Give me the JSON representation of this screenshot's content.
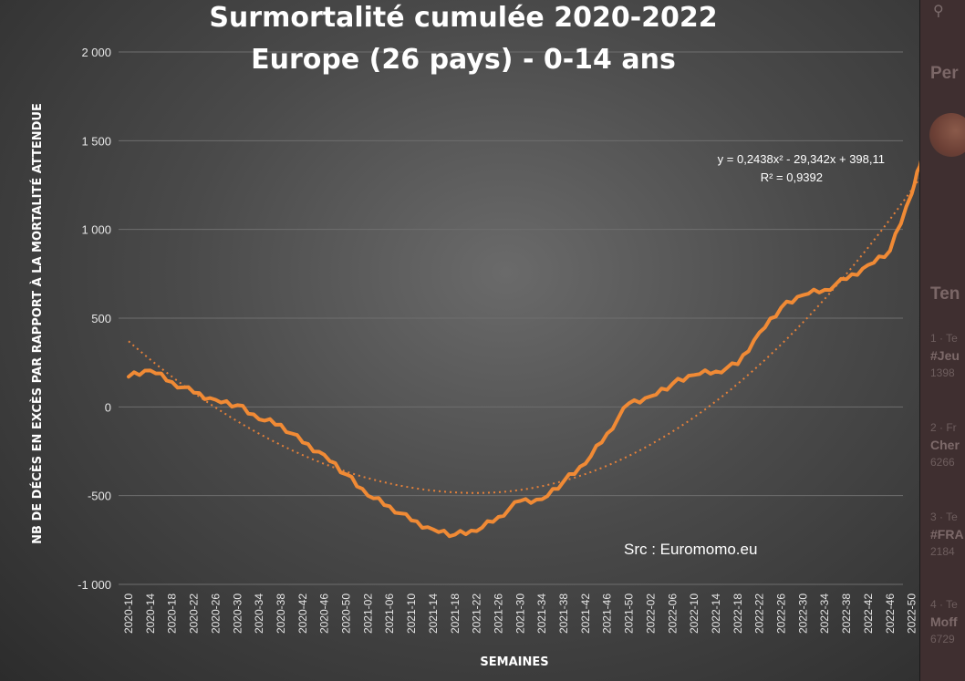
{
  "chart_data": {
    "type": "line",
    "title": "Surmortalité cumulée 2020-2022",
    "subtitle": "Europe (26 pays) - 0-14 ans",
    "xlabel": "SEMAINES",
    "ylabel": "NB DE DÉCÈS EN EXCÈS PAR RAPPORT À LA MORTALITÉ ATTENDUE",
    "ylim": [
      -1000,
      2000
    ],
    "yticks": [
      2000,
      1500,
      1000,
      500,
      0,
      -500,
      -1000
    ],
    "ytick_labels": [
      "2 000",
      "1 500",
      "1 000",
      "500",
      "0",
      "-500",
      "-1 000"
    ],
    "xticks": [
      "2020-10",
      "2020-14",
      "2020-18",
      "2020-22",
      "2020-26",
      "2020-30",
      "2020-34",
      "2020-38",
      "2020-42",
      "2020-46",
      "2020-50",
      "2021-02",
      "2021-06",
      "2021-10",
      "2021-14",
      "2021-18",
      "2021-22",
      "2021-26",
      "2021-30",
      "2021-34",
      "2021-38",
      "2021-42",
      "2021-46",
      "2021-50",
      "2022-02",
      "2022-06",
      "2022-10",
      "2022-14",
      "2022-18",
      "2022-22",
      "2022-26",
      "2022-30",
      "2022-34",
      "2022-38",
      "2022-42",
      "2022-46",
      "2022-50"
    ],
    "grid": true,
    "series": [
      {
        "color": "#f08a35",
        "x": [
          "2020-10",
          "2020-14",
          "2020-18",
          "2020-22",
          "2020-26",
          "2020-30",
          "2020-34",
          "2020-38",
          "2020-42",
          "2020-46",
          "2020-50",
          "2021-02",
          "2021-06",
          "2021-10",
          "2021-14",
          "2021-18",
          "2021-22",
          "2021-26",
          "2021-30",
          "2021-34",
          "2021-38",
          "2021-42",
          "2021-46",
          "2021-50",
          "2022-02",
          "2022-06",
          "2022-10",
          "2022-14",
          "2022-18",
          "2022-22",
          "2022-26",
          "2022-30",
          "2022-34",
          "2022-38",
          "2022-42",
          "2022-46",
          "2022-50",
          "2022-52"
        ],
        "values": [
          170,
          205,
          140,
          80,
          40,
          10,
          -70,
          -100,
          -200,
          -270,
          -380,
          -500,
          -560,
          -640,
          -690,
          -720,
          -700,
          -620,
          -530,
          -520,
          -420,
          -320,
          -150,
          20,
          60,
          130,
          180,
          200,
          240,
          420,
          560,
          630,
          660,
          720,
          800,
          880,
          1200,
          1420
        ]
      }
    ],
    "trendline": {
      "type": "polynomial",
      "color": "#e4803a",
      "start": 370,
      "min": -485,
      "min_at": "2021-22",
      "end": 1310,
      "equation": "y = 0,2438x² - 29,342x + 398,11",
      "r2": "R² = 0,9392"
    },
    "source": "Src : Euromomo.eu"
  },
  "sidebar": {
    "headings": [
      "Per",
      "Ten"
    ],
    "trends": [
      {
        "meta": "1 · Te",
        "label": "#Jeu",
        "count": "1398"
      },
      {
        "meta": "2 · Fr",
        "label": "Cher",
        "count": "6266"
      },
      {
        "meta": "3 · Te",
        "label": "#FRA",
        "count": "2184"
      },
      {
        "meta": "4 · Te",
        "label": "Moff",
        "count": "6729"
      }
    ]
  }
}
